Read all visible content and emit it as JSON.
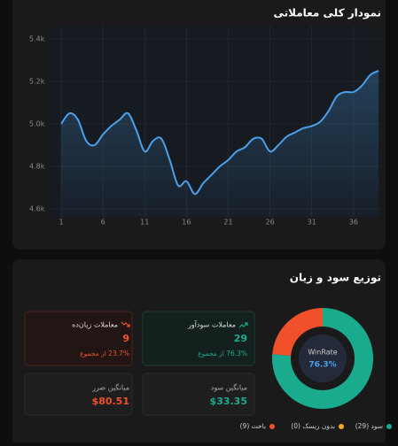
{
  "chart_data": [
    {
      "type": "line",
      "title": "نمودار کلی معاملاتی",
      "x": [
        1,
        2,
        3,
        4,
        5,
        6,
        7,
        8,
        9,
        10,
        11,
        12,
        13,
        14,
        15,
        16,
        17,
        18,
        19,
        20,
        21,
        22,
        23,
        24,
        25,
        26,
        27,
        28,
        29,
        30,
        31,
        32,
        33,
        34,
        35,
        36,
        37,
        38,
        39
      ],
      "values": [
        5000,
        5050,
        5020,
        4920,
        4900,
        4950,
        4990,
        5020,
        5050,
        4970,
        4870,
        4920,
        4930,
        4830,
        4710,
        4730,
        4670,
        4720,
        4760,
        4800,
        4830,
        4870,
        4890,
        4930,
        4930,
        4870,
        4900,
        4940,
        4960,
        4980,
        4990,
        5010,
        5060,
        5130,
        5150,
        5150,
        5180,
        5230,
        5250
      ],
      "color": "#4a9fe8",
      "xlim": [
        -0.2,
        39.2
      ],
      "xticks": [
        1,
        6,
        11,
        16,
        21,
        26,
        31,
        36
      ],
      "ylim": [
        4560,
        5460
      ],
      "yticks": [
        {
          "value": 4600,
          "label": "4.6k"
        },
        {
          "value": 4800,
          "label": "4.8k"
        },
        {
          "value": 5000,
          "label": "5.0k"
        },
        {
          "value": 5200,
          "label": "5.2k"
        },
        {
          "value": 5400,
          "label": "5.4k"
        }
      ],
      "grid": true
    },
    {
      "type": "pie",
      "title": "توزیع سود و زیان",
      "labels": [
        "سود (29)",
        "بدون ریسک (0)",
        "باخت (9)"
      ],
      "values": [
        29,
        0,
        9
      ],
      "colors": [
        "#1aab8f",
        "#f5a623",
        "#f0502a"
      ],
      "center_title": "WinRate",
      "center_value": "76.3%"
    }
  ],
  "cards": [
    {
      "title": "معاملات سودآور",
      "value": 29,
      "subtitle": "76.3% از مجموع"
    },
    {
      "title": "معاملات زیان‌ده",
      "value": 9,
      "subtitle": "23.7% از مجموع"
    },
    {
      "title": "میانگین سود",
      "value": "$33.35"
    },
    {
      "title": "میانگین ضرر",
      "value": "$80.51"
    }
  ]
}
